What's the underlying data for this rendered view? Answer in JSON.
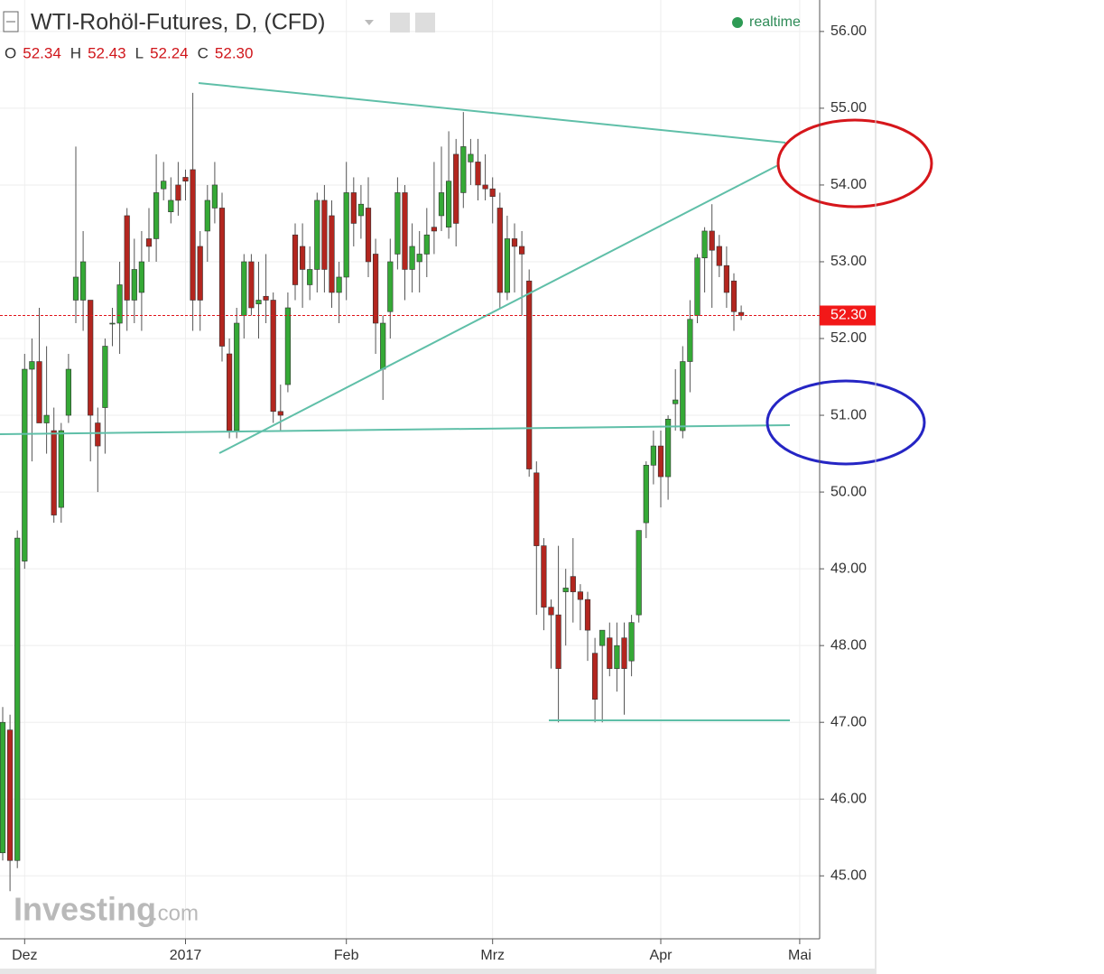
{
  "chart_data": {
    "type": "candlestick",
    "title": "WTI-Rohöl-Futures, D, (CFD)",
    "ohlc_legend": {
      "labels": [
        "O",
        "H",
        "L",
        "C"
      ],
      "values": [
        "52.34",
        "52.43",
        "52.24",
        "52.30"
      ]
    },
    "status": "realtime",
    "watermark": [
      "Investing",
      ".com"
    ],
    "last_price": {
      "value": 52.3,
      "label": "52.30"
    },
    "up_color": "#35a936",
    "down_color": "#b3261f",
    "categories": [
      null,
      null,
      null,
      "Dez",
      null,
      null,
      null,
      null,
      null,
      null,
      null,
      null,
      null,
      null,
      null,
      null,
      null,
      null,
      null,
      null,
      null,
      null,
      null,
      null,
      null,
      "2017",
      null,
      null,
      null,
      null,
      null,
      null,
      null,
      null,
      null,
      null,
      null,
      null,
      null,
      null,
      null,
      null,
      null,
      null,
      null,
      null,
      null,
      "Feb",
      null,
      null,
      null,
      null,
      null,
      null,
      null,
      null,
      null,
      null,
      null,
      null,
      null,
      null,
      null,
      null,
      null,
      null,
      null,
      "Mrz",
      null,
      null,
      null,
      null,
      null,
      null,
      null,
      null,
      null,
      null,
      null,
      null,
      null,
      null,
      null,
      null,
      null,
      null,
      null,
      null,
      null,
      null,
      "Apr",
      null,
      null,
      null,
      null,
      null,
      null,
      null,
      null,
      null,
      null,
      null,
      null,
      null,
      null,
      null,
      null,
      null,
      null,
      "Mai"
    ],
    "open": [
      45.3,
      46.9,
      45.2,
      49.1,
      51.6,
      51.7,
      50.9,
      50.8,
      49.8,
      51.0,
      52.5,
      52.5,
      52.5,
      50.9,
      51.1,
      52.2,
      52.2,
      53.6,
      52.5,
      52.6,
      53.3,
      53.3,
      53.95,
      53.65,
      54.0,
      54.1,
      54.2,
      53.2,
      53.4,
      53.7,
      53.7,
      51.8,
      50.8,
      52.3,
      53.0,
      52.45,
      52.55,
      52.5,
      51.05,
      51.4,
      53.35,
      53.2,
      52.7,
      52.9,
      53.8,
      53.6,
      52.6,
      52.8,
      53.9,
      53.6,
      53.7,
      53.1,
      51.6,
      52.35,
      53.1,
      53.9,
      52.9,
      53.0,
      53.1,
      53.45,
      53.6,
      53.45,
      54.4,
      53.9,
      54.3,
      54.3,
      54.0,
      53.95,
      53.7,
      52.6,
      53.3,
      53.2,
      52.75,
      50.25,
      49.3,
      48.5,
      48.4,
      48.7,
      48.9,
      48.7,
      48.6,
      47.9,
      48.0,
      48.1,
      47.7,
      48.1,
      47.8,
      48.4,
      49.6,
      50.35,
      50.6,
      50.2,
      51.15,
      50.8,
      51.7,
      52.3,
      53.05,
      53.4,
      53.2,
      52.95,
      52.75,
      52.34,
      null,
      null,
      null,
      null,
      null,
      null,
      null,
      null
    ],
    "high": [
      47.2,
      47.1,
      49.5,
      51.8,
      52.0,
      52.4,
      51.9,
      51.1,
      50.9,
      51.8,
      54.5,
      53.4,
      52.5,
      51.1,
      52.0,
      52.4,
      53.0,
      53.7,
      53.3,
      53.4,
      53.7,
      54.4,
      54.3,
      54.1,
      54.3,
      54.2,
      55.2,
      53.4,
      54.0,
      54.3,
      53.9,
      52.0,
      52.4,
      53.1,
      53.1,
      53.0,
      53.1,
      52.6,
      51.4,
      52.6,
      53.5,
      53.5,
      53.2,
      53.9,
      54.0,
      53.8,
      53.0,
      54.3,
      54.1,
      54.0,
      54.1,
      53.3,
      52.3,
      53.3,
      54.1,
      54.0,
      53.5,
      53.4,
      53.7,
      54.3,
      54.5,
      54.7,
      54.6,
      54.95,
      54.6,
      54.6,
      54.4,
      54.1,
      53.9,
      53.6,
      53.5,
      53.4,
      52.9,
      50.4,
      49.4,
      48.6,
      49.3,
      49.0,
      49.4,
      48.8,
      48.7,
      48.1,
      48.2,
      48.3,
      48.3,
      48.3,
      48.4,
      49.5,
      50.4,
      50.8,
      50.8,
      51.0,
      51.6,
      51.9,
      52.5,
      53.1,
      53.45,
      53.75,
      53.35,
      53.2,
      52.85,
      52.43,
      null,
      null,
      null,
      null,
      null,
      null,
      null,
      null
    ],
    "low": [
      45.2,
      44.8,
      45.1,
      49.0,
      50.4,
      50.9,
      50.5,
      49.6,
      49.6,
      50.9,
      52.2,
      52.1,
      50.4,
      50.0,
      50.5,
      51.9,
      51.8,
      52.1,
      52.2,
      52.1,
      53.0,
      53.0,
      53.8,
      53.5,
      53.6,
      53.8,
      52.1,
      52.1,
      53.0,
      53.5,
      51.7,
      50.7,
      50.7,
      52.0,
      52.3,
      52.0,
      52.2,
      50.9,
      50.8,
      51.3,
      52.5,
      52.4,
      52.5,
      52.6,
      52.6,
      52.4,
      52.2,
      52.5,
      53.2,
      53.3,
      52.8,
      51.8,
      51.2,
      52.0,
      52.9,
      52.5,
      52.6,
      52.6,
      52.8,
      53.1,
      53.4,
      53.3,
      53.2,
      53.7,
      54.0,
      53.8,
      53.8,
      53.5,
      52.4,
      52.5,
      52.6,
      52.3,
      50.2,
      48.4,
      48.2,
      47.7,
      47.0,
      48.0,
      48.3,
      48.2,
      47.8,
      47.0,
      47.0,
      47.6,
      47.4,
      47.1,
      47.6,
      48.3,
      49.4,
      50.1,
      49.8,
      49.9,
      50.8,
      50.7,
      51.3,
      52.2,
      52.6,
      52.4,
      52.8,
      52.4,
      52.1,
      52.24,
      null,
      null,
      null,
      null,
      null,
      null,
      null,
      null
    ],
    "close": [
      47.0,
      45.2,
      49.4,
      51.6,
      51.7,
      50.9,
      51.0,
      49.7,
      50.8,
      51.6,
      52.8,
      53.0,
      51.0,
      50.6,
      51.9,
      52.2,
      52.7,
      52.5,
      52.9,
      53.0,
      53.2,
      53.9,
      54.05,
      53.8,
      53.8,
      54.05,
      52.5,
      52.5,
      53.8,
      54.0,
      51.9,
      50.8,
      52.2,
      53.0,
      52.4,
      52.5,
      52.5,
      51.05,
      51.0,
      52.4,
      52.7,
      52.9,
      52.9,
      53.8,
      52.9,
      52.6,
      52.8,
      53.9,
      53.5,
      53.75,
      53.0,
      52.2,
      52.2,
      53.0,
      53.9,
      52.9,
      53.2,
      53.1,
      53.35,
      53.4,
      53.9,
      54.05,
      53.5,
      54.5,
      54.4,
      54.0,
      53.95,
      53.85,
      52.6,
      53.3,
      53.2,
      53.1,
      50.3,
      49.3,
      48.5,
      48.4,
      47.7,
      48.75,
      48.7,
      48.6,
      48.2,
      47.3,
      48.2,
      47.7,
      48.0,
      47.7,
      48.3,
      49.5,
      50.35,
      50.6,
      50.2,
      50.95,
      51.2,
      51.7,
      52.25,
      53.05,
      53.4,
      53.15,
      52.95,
      52.6,
      52.35,
      52.3,
      null,
      null,
      null,
      null,
      null,
      null,
      null,
      null
    ],
    "ylim": [
      44.18,
      56.41
    ],
    "yticks": [
      {
        "value": 45,
        "label": "45.00"
      },
      {
        "value": 46,
        "label": "46.00"
      },
      {
        "value": 47,
        "label": "47.00"
      },
      {
        "value": 48,
        "label": "48.00"
      },
      {
        "value": 49,
        "label": "49.00"
      },
      {
        "value": 50,
        "label": "50.00"
      },
      {
        "value": 51,
        "label": "51.00"
      },
      {
        "value": 52,
        "label": "52.00"
      },
      {
        "value": 53,
        "label": "53.00"
      },
      {
        "value": 54,
        "label": "54.00"
      },
      {
        "value": 55,
        "label": "55.00"
      },
      {
        "value": 56,
        "label": "56.00"
      }
    ],
    "grid": true
  }
}
